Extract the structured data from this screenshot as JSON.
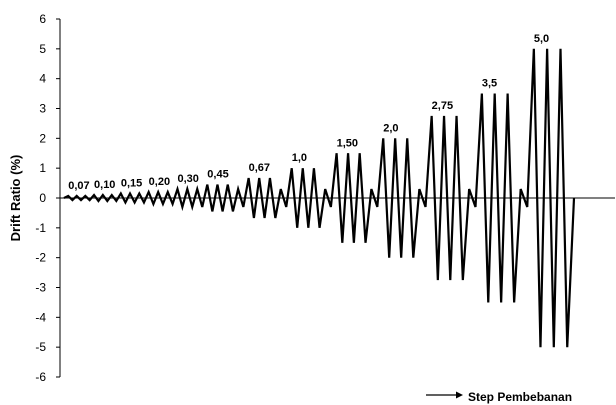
{
  "chart_data": {
    "type": "line",
    "ylabel": "Drift Ratio (%)",
    "xlabel": "Step Pembebanan",
    "ylim": [
      -6,
      6
    ],
    "yticks": [
      "6",
      "5",
      "4",
      "3",
      "2",
      "1",
      "0",
      "-1",
      "-2",
      "-3",
      "-4",
      "-5",
      "-6"
    ],
    "grid": false,
    "line_color": "#000000",
    "series": [
      {
        "cycles_per_step": 3,
        "steps": [
          {
            "label": "0,07",
            "amplitude": 0.07
          },
          {
            "label": "0,10",
            "amplitude": 0.1
          },
          {
            "label": "0,15",
            "amplitude": 0.15
          },
          {
            "label": "0,20",
            "amplitude": 0.2
          },
          {
            "label": "0,30",
            "amplitude": 0.3
          },
          {
            "label": "0,45",
            "amplitude": 0.45
          },
          {
            "label": "0,67",
            "amplitude": 0.67
          },
          {
            "label": "1,0",
            "amplitude": 1.0
          },
          {
            "label": "1,50",
            "amplitude": 1.5
          },
          {
            "label": "2,0",
            "amplitude": 2.0
          },
          {
            "label": "2,75",
            "amplitude": 2.75
          },
          {
            "label": "3,5",
            "amplitude": 3.5
          },
          {
            "label": "5,0",
            "amplitude": 5.0
          }
        ],
        "small_cycle": {
          "amplitude": 0.3,
          "cycles": 1
        }
      }
    ]
  }
}
